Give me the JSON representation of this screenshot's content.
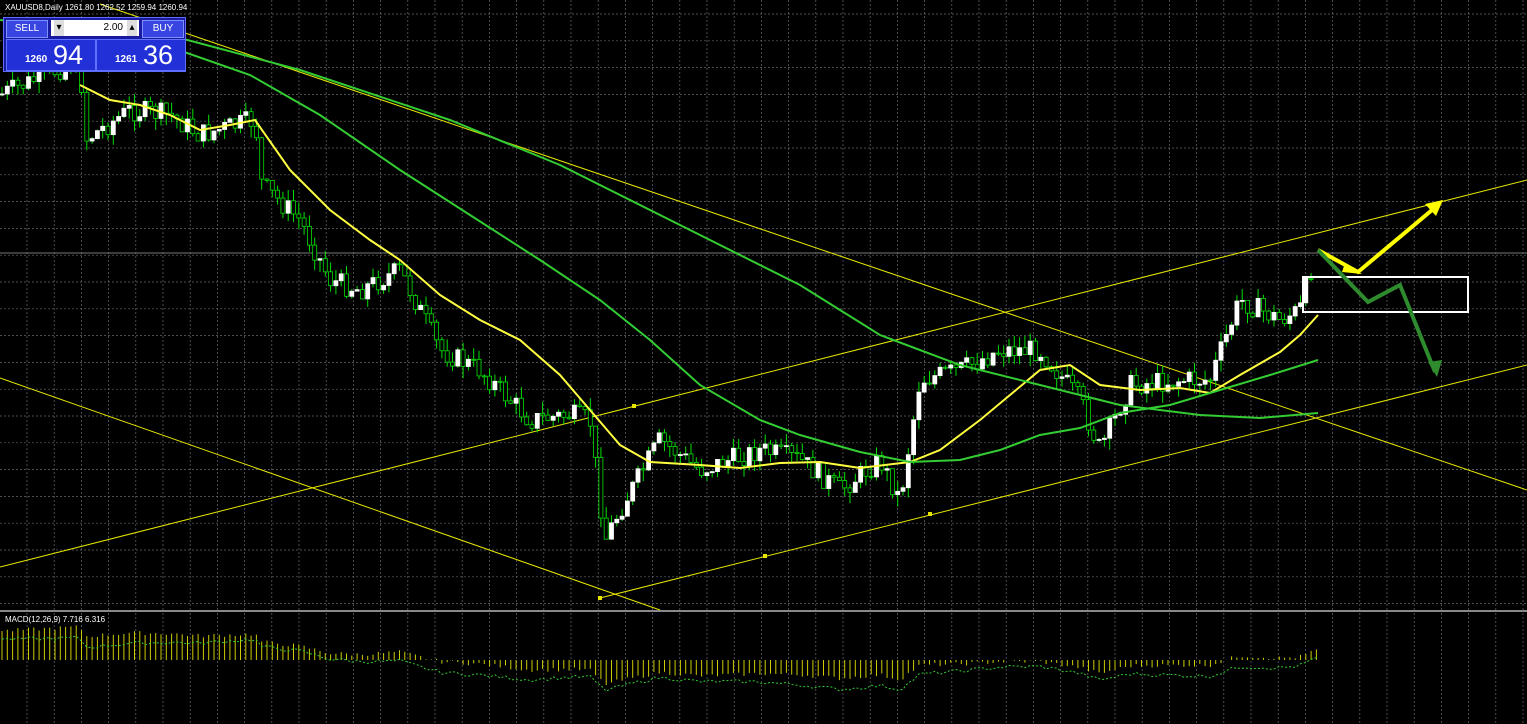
{
  "header": {
    "symbol_info": "XAUUSD8,Daily  1261.80 1262.52 1259.94 1260.94"
  },
  "trade_panel": {
    "sell_label": "SELL",
    "lot": "2.00",
    "buy_label": "BUY",
    "sell_main": "1260",
    "sell_pips": "94",
    "buy_main": "1261",
    "buy_pips": "36"
  },
  "macd": {
    "label": "MACD(12,26,9) 7.716 6.316"
  }
}
